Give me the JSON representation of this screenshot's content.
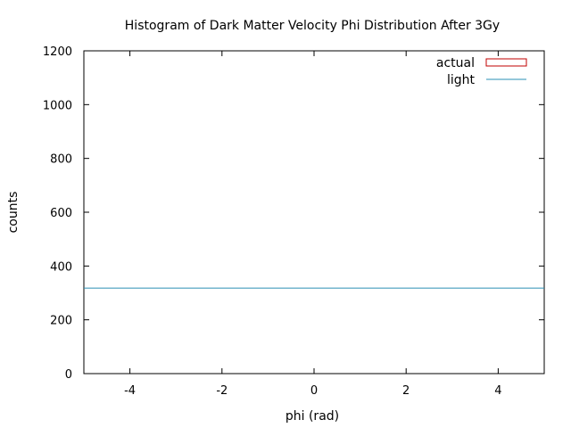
{
  "chart_data": {
    "type": "histogram",
    "title": "Histogram of Dark Matter Velocity Phi Distribution After 3Gy",
    "xlabel": "phi (rad)",
    "ylabel": "counts",
    "xlim": [
      -5,
      5
    ],
    "ylim": [
      0,
      1200
    ],
    "xticks": [
      -4,
      -2,
      0,
      2,
      4
    ],
    "yticks": [
      0,
      200,
      400,
      600,
      800,
      1000,
      1200
    ],
    "grid": false,
    "legend_position": "top-right",
    "series": [
      {
        "name": "actual",
        "kind": "histogram",
        "color": "#c00000",
        "values": []
      },
      {
        "name": "light",
        "kind": "line",
        "color": "#2a8fb5",
        "x": [
          -5,
          5
        ],
        "y": [
          318,
          318
        ]
      }
    ]
  }
}
